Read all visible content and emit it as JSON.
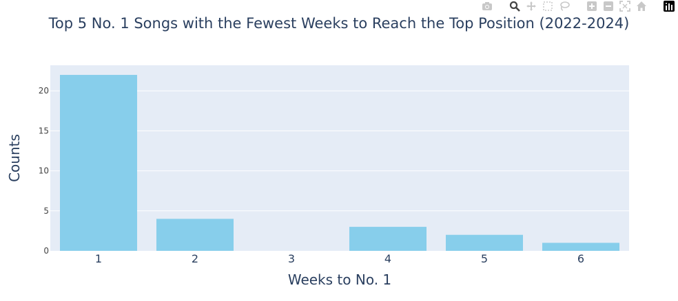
{
  "modebar": {
    "buttons": [
      "camera-icon",
      "zoom-icon",
      "pan-icon",
      "box-select-icon",
      "lasso-icon",
      "zoom-in-icon",
      "zoom-out-icon",
      "autoscale-icon",
      "home-icon",
      "plotly-logo-icon"
    ]
  },
  "colors": {
    "bar": "#87ceeb",
    "plot_bg": "#e5ecf6",
    "grid": "#ffffff",
    "text": "#2a3f5f",
    "tick_text": "#444444"
  },
  "chart_data": {
    "type": "bar",
    "title": "Top 5 No. 1 Songs with the Fewest Weeks to Reach the Top Position (2022-2024)",
    "xlabel": "Weeks to No. 1",
    "ylabel": "Counts",
    "categories": [
      "1",
      "2",
      "3",
      "4",
      "5",
      "6"
    ],
    "values": [
      22,
      4,
      0,
      3,
      2,
      1
    ],
    "ylim": [
      0,
      23.2
    ],
    "yticks": [
      0,
      5,
      10,
      15,
      20
    ],
    "grid": true,
    "legend": "none"
  }
}
